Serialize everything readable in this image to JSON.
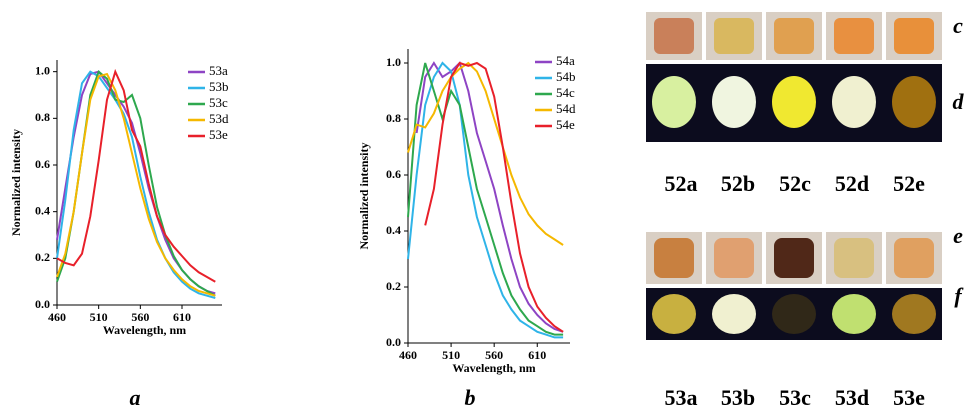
{
  "chart_data": [
    {
      "type": "line",
      "caption": "a",
      "xlabel": "Wavelength, nm",
      "ylabel": "Normalized intensity",
      "x": [
        460,
        470,
        480,
        490,
        500,
        510,
        520,
        530,
        540,
        550,
        560,
        570,
        580,
        590,
        600,
        610,
        620,
        630,
        640,
        650
      ],
      "xlim": [
        460,
        658
      ],
      "xticks": [
        460,
        510,
        560,
        610
      ],
      "ylim": [
        0,
        1.05
      ],
      "yticks": [
        {
          "value": 0,
          "label": "0.0"
        },
        0.2,
        0.4,
        0.6,
        0.8,
        {
          "value": 1,
          "label": "1.0"
        }
      ],
      "series": [
        {
          "name": "53a",
          "color": "#8e44c4",
          "values": [
            0.28,
            0.5,
            0.72,
            0.9,
            0.99,
            1.0,
            0.95,
            0.9,
            0.85,
            0.78,
            0.65,
            0.5,
            0.38,
            0.28,
            0.2,
            0.15,
            0.11,
            0.08,
            0.06,
            0.05
          ]
        },
        {
          "name": "53b",
          "color": "#2fb4e8",
          "values": [
            0.2,
            0.45,
            0.75,
            0.95,
            1.0,
            0.98,
            0.93,
            0.88,
            0.82,
            0.72,
            0.55,
            0.4,
            0.28,
            0.2,
            0.14,
            0.1,
            0.07,
            0.05,
            0.04,
            0.03
          ]
        },
        {
          "name": "53c",
          "color": "#2ea84e",
          "values": [
            0.1,
            0.2,
            0.4,
            0.65,
            0.9,
            1.0,
            0.97,
            0.88,
            0.87,
            0.9,
            0.8,
            0.6,
            0.42,
            0.3,
            0.21,
            0.15,
            0.11,
            0.08,
            0.06,
            0.04
          ]
        },
        {
          "name": "53d",
          "color": "#f5b800",
          "values": [
            0.12,
            0.22,
            0.4,
            0.65,
            0.88,
            0.98,
            0.99,
            0.92,
            0.8,
            0.65,
            0.5,
            0.37,
            0.27,
            0.2,
            0.15,
            0.11,
            0.08,
            0.06,
            0.05,
            0.04
          ]
        },
        {
          "name": "53e",
          "color": "#e8202a",
          "values": [
            0.2,
            0.18,
            0.17,
            0.22,
            0.38,
            0.62,
            0.88,
            1.0,
            0.92,
            0.75,
            0.68,
            0.52,
            0.38,
            0.3,
            0.25,
            0.21,
            0.17,
            0.14,
            0.12,
            0.1
          ]
        }
      ]
    },
    {
      "type": "line",
      "caption": "b",
      "xlabel": "Wavelength, nm",
      "ylabel": "Normalized intensity",
      "x": [
        460,
        470,
        480,
        490,
        500,
        510,
        520,
        530,
        540,
        550,
        560,
        570,
        580,
        590,
        600,
        610,
        620,
        630,
        640
      ],
      "xlim": [
        460,
        648
      ],
      "xticks": [
        460,
        510,
        560,
        610
      ],
      "ylim": [
        0,
        1.05
      ],
      "yticks": [
        {
          "value": 0,
          "label": "0.0"
        },
        0.2,
        0.4,
        0.6,
        0.8,
        {
          "value": 1,
          "label": "1.0"
        }
      ],
      "series": [
        {
          "name": "54a",
          "color": "#8e44c4",
          "values": [
            null,
            0.75,
            0.95,
            1.0,
            0.95,
            0.97,
            1.0,
            0.9,
            0.75,
            0.65,
            0.55,
            0.42,
            0.3,
            0.2,
            0.14,
            0.1,
            0.07,
            0.05,
            0.04
          ]
        },
        {
          "name": "54b",
          "color": "#2fb4e8",
          "values": [
            0.3,
            0.6,
            0.85,
            0.95,
            1.0,
            0.97,
            0.85,
            0.6,
            0.45,
            0.35,
            0.25,
            0.17,
            0.12,
            0.08,
            0.06,
            0.04,
            0.03,
            0.02,
            0.02
          ]
        },
        {
          "name": "54c",
          "color": "#2ea84e",
          "values": [
            0.45,
            0.85,
            1.0,
            0.9,
            0.8,
            0.9,
            0.85,
            0.7,
            0.55,
            0.45,
            0.35,
            0.25,
            0.17,
            0.12,
            0.08,
            0.06,
            0.04,
            0.03,
            0.03
          ]
        },
        {
          "name": "54d",
          "color": "#f5b800",
          "values": [
            0.68,
            0.78,
            0.77,
            0.82,
            0.9,
            0.95,
            0.98,
            1.0,
            0.97,
            0.9,
            0.8,
            0.7,
            0.6,
            0.52,
            0.46,
            0.42,
            0.39,
            0.37,
            0.35
          ]
        },
        {
          "name": "54e",
          "color": "#e8202a",
          "values": [
            null,
            null,
            0.42,
            0.55,
            0.78,
            0.95,
            1.0,
            0.99,
            1.0,
            0.98,
            0.88,
            0.7,
            0.5,
            0.32,
            0.2,
            0.13,
            0.09,
            0.06,
            0.04
          ]
        }
      ]
    }
  ],
  "photos": {
    "top": {
      "row_letters": [
        "c",
        "d"
      ],
      "labels": [
        "52a",
        "52b",
        "52c",
        "52d",
        "52e"
      ]
    },
    "bottom": {
      "row_letters": [
        "e",
        "f"
      ],
      "labels": [
        "53a",
        "53b",
        "53c",
        "53d",
        "53e"
      ]
    }
  }
}
